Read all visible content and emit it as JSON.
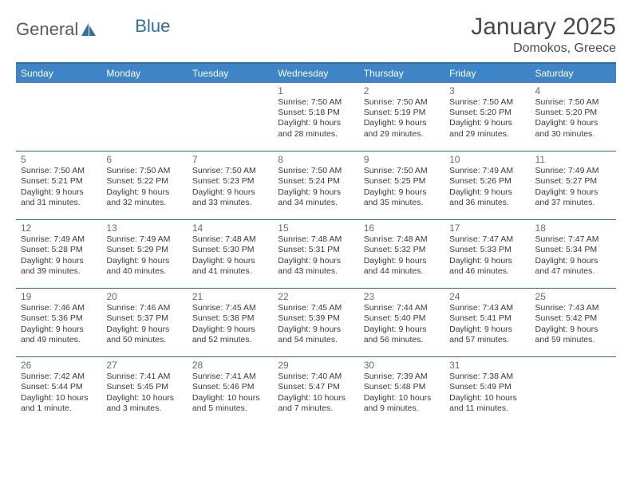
{
  "brand": {
    "part1": "General",
    "part2": "Blue"
  },
  "title": "January 2025",
  "location": "Domokos, Greece",
  "colors": {
    "header_bg": "#3d85c6",
    "header_border": "#2f6fa7",
    "text_dark": "#3a3a3a",
    "text_mid": "#6a6a6a",
    "brand_gray": "#5a5a5a",
    "brand_blue": "#2f6fa7",
    "background": "#ffffff"
  },
  "typography": {
    "title_size_pt": 22,
    "location_size_pt": 12,
    "daynum_size_pt": 9,
    "body_size_pt": 8
  },
  "day_headers": [
    "Sunday",
    "Monday",
    "Tuesday",
    "Wednesday",
    "Thursday",
    "Friday",
    "Saturday"
  ],
  "weeks": [
    [
      null,
      null,
      null,
      {
        "n": "1",
        "sr": "7:50 AM",
        "ss": "5:18 PM",
        "dl": "9 hours and 28 minutes."
      },
      {
        "n": "2",
        "sr": "7:50 AM",
        "ss": "5:19 PM",
        "dl": "9 hours and 29 minutes."
      },
      {
        "n": "3",
        "sr": "7:50 AM",
        "ss": "5:20 PM",
        "dl": "9 hours and 29 minutes."
      },
      {
        "n": "4",
        "sr": "7:50 AM",
        "ss": "5:20 PM",
        "dl": "9 hours and 30 minutes."
      }
    ],
    [
      {
        "n": "5",
        "sr": "7:50 AM",
        "ss": "5:21 PM",
        "dl": "9 hours and 31 minutes."
      },
      {
        "n": "6",
        "sr": "7:50 AM",
        "ss": "5:22 PM",
        "dl": "9 hours and 32 minutes."
      },
      {
        "n": "7",
        "sr": "7:50 AM",
        "ss": "5:23 PM",
        "dl": "9 hours and 33 minutes."
      },
      {
        "n": "8",
        "sr": "7:50 AM",
        "ss": "5:24 PM",
        "dl": "9 hours and 34 minutes."
      },
      {
        "n": "9",
        "sr": "7:50 AM",
        "ss": "5:25 PM",
        "dl": "9 hours and 35 minutes."
      },
      {
        "n": "10",
        "sr": "7:49 AM",
        "ss": "5:26 PM",
        "dl": "9 hours and 36 minutes."
      },
      {
        "n": "11",
        "sr": "7:49 AM",
        "ss": "5:27 PM",
        "dl": "9 hours and 37 minutes."
      }
    ],
    [
      {
        "n": "12",
        "sr": "7:49 AM",
        "ss": "5:28 PM",
        "dl": "9 hours and 39 minutes."
      },
      {
        "n": "13",
        "sr": "7:49 AM",
        "ss": "5:29 PM",
        "dl": "9 hours and 40 minutes."
      },
      {
        "n": "14",
        "sr": "7:48 AM",
        "ss": "5:30 PM",
        "dl": "9 hours and 41 minutes."
      },
      {
        "n": "15",
        "sr": "7:48 AM",
        "ss": "5:31 PM",
        "dl": "9 hours and 43 minutes."
      },
      {
        "n": "16",
        "sr": "7:48 AM",
        "ss": "5:32 PM",
        "dl": "9 hours and 44 minutes."
      },
      {
        "n": "17",
        "sr": "7:47 AM",
        "ss": "5:33 PM",
        "dl": "9 hours and 46 minutes."
      },
      {
        "n": "18",
        "sr": "7:47 AM",
        "ss": "5:34 PM",
        "dl": "9 hours and 47 minutes."
      }
    ],
    [
      {
        "n": "19",
        "sr": "7:46 AM",
        "ss": "5:36 PM",
        "dl": "9 hours and 49 minutes."
      },
      {
        "n": "20",
        "sr": "7:46 AM",
        "ss": "5:37 PM",
        "dl": "9 hours and 50 minutes."
      },
      {
        "n": "21",
        "sr": "7:45 AM",
        "ss": "5:38 PM",
        "dl": "9 hours and 52 minutes."
      },
      {
        "n": "22",
        "sr": "7:45 AM",
        "ss": "5:39 PM",
        "dl": "9 hours and 54 minutes."
      },
      {
        "n": "23",
        "sr": "7:44 AM",
        "ss": "5:40 PM",
        "dl": "9 hours and 56 minutes."
      },
      {
        "n": "24",
        "sr": "7:43 AM",
        "ss": "5:41 PM",
        "dl": "9 hours and 57 minutes."
      },
      {
        "n": "25",
        "sr": "7:43 AM",
        "ss": "5:42 PM",
        "dl": "9 hours and 59 minutes."
      }
    ],
    [
      {
        "n": "26",
        "sr": "7:42 AM",
        "ss": "5:44 PM",
        "dl": "10 hours and 1 minute."
      },
      {
        "n": "27",
        "sr": "7:41 AM",
        "ss": "5:45 PM",
        "dl": "10 hours and 3 minutes."
      },
      {
        "n": "28",
        "sr": "7:41 AM",
        "ss": "5:46 PM",
        "dl": "10 hours and 5 minutes."
      },
      {
        "n": "29",
        "sr": "7:40 AM",
        "ss": "5:47 PM",
        "dl": "10 hours and 7 minutes."
      },
      {
        "n": "30",
        "sr": "7:39 AM",
        "ss": "5:48 PM",
        "dl": "10 hours and 9 minutes."
      },
      {
        "n": "31",
        "sr": "7:38 AM",
        "ss": "5:49 PM",
        "dl": "10 hours and 11 minutes."
      },
      null
    ]
  ],
  "labels": {
    "sunrise": "Sunrise:",
    "sunset": "Sunset:",
    "daylight": "Daylight:"
  }
}
